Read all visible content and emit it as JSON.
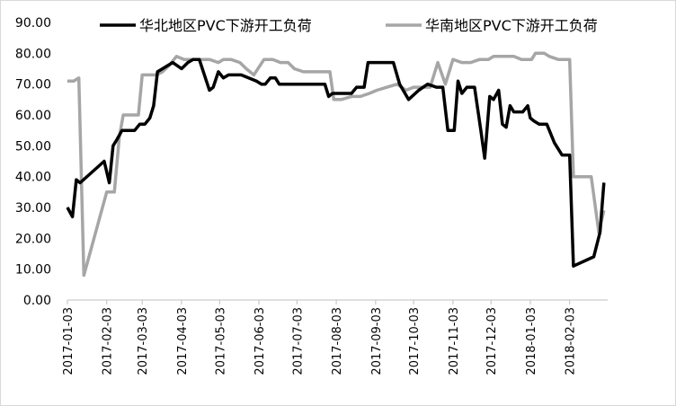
{
  "chart_data": {
    "type": "line",
    "ylim": [
      0,
      90
    ],
    "ytick_labels": [
      "0.00",
      "10.00",
      "20.00",
      "30.00",
      "40.00",
      "50.00",
      "60.00",
      "70.00",
      "80.00",
      "90.00"
    ],
    "ytick_values": [
      0,
      10,
      20,
      30,
      40,
      50,
      60,
      70,
      80,
      90
    ],
    "xtick_labels": [
      "2017-01-03",
      "2017-02-03",
      "2017-03-03",
      "2017-04-03",
      "2017-05-03",
      "2017-06-03",
      "2017-07-03",
      "2017-08-03",
      "2017-09-03",
      "2017-10-03",
      "2017-11-03",
      "2017-12-03",
      "2018-01-03",
      "2018-02-03"
    ],
    "xtick_dates": [
      "2017-01-03",
      "2017-02-03",
      "2017-03-03",
      "2017-04-03",
      "2017-05-03",
      "2017-06-03",
      "2017-07-03",
      "2017-08-03",
      "2017-09-03",
      "2017-10-03",
      "2017-11-03",
      "2017-12-03",
      "2018-01-03",
      "2018-02-03"
    ],
    "x_start": "2017-01-03",
    "x_end": "2018-03-05",
    "legend_position": "top",
    "grid": false,
    "series": [
      {
        "name": "华北地区PVC下游开工负荷",
        "color": "#000000",
        "points": [
          [
            "2017-01-03",
            30
          ],
          [
            "2017-01-07",
            27
          ],
          [
            "2017-01-10",
            39
          ],
          [
            "2017-01-13",
            38
          ],
          [
            "2017-02-01",
            45
          ],
          [
            "2017-02-05",
            38
          ],
          [
            "2017-02-08",
            50
          ],
          [
            "2017-02-11",
            52
          ],
          [
            "2017-02-15",
            55
          ],
          [
            "2017-02-25",
            55
          ],
          [
            "2017-03-01",
            57
          ],
          [
            "2017-03-05",
            57
          ],
          [
            "2017-03-09",
            59
          ],
          [
            "2017-03-12",
            63
          ],
          [
            "2017-03-15",
            74
          ],
          [
            "2017-03-19",
            75
          ],
          [
            "2017-03-27",
            77
          ],
          [
            "2017-04-03",
            75
          ],
          [
            "2017-04-08",
            77
          ],
          [
            "2017-04-12",
            78
          ],
          [
            "2017-04-17",
            78
          ],
          [
            "2017-04-25",
            68
          ],
          [
            "2017-04-28",
            69
          ],
          [
            "2017-05-02",
            74
          ],
          [
            "2017-05-06",
            72
          ],
          [
            "2017-05-10",
            73
          ],
          [
            "2017-05-20",
            73
          ],
          [
            "2017-06-01",
            71
          ],
          [
            "2017-06-05",
            70
          ],
          [
            "2017-06-08",
            70
          ],
          [
            "2017-06-12",
            72
          ],
          [
            "2017-06-16",
            72
          ],
          [
            "2017-06-19",
            70
          ],
          [
            "2017-07-05",
            70
          ],
          [
            "2017-07-15",
            70
          ],
          [
            "2017-07-25",
            70
          ],
          [
            "2017-07-28",
            66
          ],
          [
            "2017-07-31",
            67
          ],
          [
            "2017-08-15",
            67
          ],
          [
            "2017-08-19",
            69
          ],
          [
            "2017-08-25",
            69
          ],
          [
            "2017-08-28",
            77
          ],
          [
            "2017-09-07",
            77
          ],
          [
            "2017-09-17",
            77
          ],
          [
            "2017-09-22",
            70
          ],
          [
            "2017-09-29",
            65
          ],
          [
            "2017-10-07",
            68
          ],
          [
            "2017-10-14",
            70
          ],
          [
            "2017-10-21",
            69
          ],
          [
            "2017-10-26",
            69
          ],
          [
            "2017-10-30",
            55
          ],
          [
            "2017-11-04",
            55
          ],
          [
            "2017-11-07",
            71
          ],
          [
            "2017-11-10",
            67
          ],
          [
            "2017-11-14",
            69
          ],
          [
            "2017-11-20",
            69
          ],
          [
            "2017-11-25",
            55
          ],
          [
            "2017-11-28",
            46
          ],
          [
            "2017-12-02",
            66
          ],
          [
            "2017-12-05",
            65
          ],
          [
            "2017-12-09",
            68
          ],
          [
            "2017-12-12",
            57
          ],
          [
            "2017-12-15",
            56
          ],
          [
            "2017-12-18",
            63
          ],
          [
            "2017-12-21",
            61
          ],
          [
            "2017-12-28",
            61
          ],
          [
            "2018-01-01",
            63
          ],
          [
            "2018-01-03",
            59
          ],
          [
            "2018-01-06",
            58
          ],
          [
            "2018-01-10",
            57
          ],
          [
            "2018-01-16",
            57
          ],
          [
            "2018-01-22",
            51
          ],
          [
            "2018-01-28",
            47
          ],
          [
            "2018-02-03",
            47
          ],
          [
            "2018-02-06",
            11
          ],
          [
            "2018-02-22",
            14
          ],
          [
            "2018-02-27",
            22
          ],
          [
            "2018-03-02",
            38
          ]
        ]
      },
      {
        "name": "华南地区PVC下游开工负荷",
        "color": "#a6a6a6",
        "points": [
          [
            "2017-01-03",
            71
          ],
          [
            "2017-01-08",
            71
          ],
          [
            "2017-01-12",
            72
          ],
          [
            "2017-01-16",
            8
          ],
          [
            "2017-02-03",
            35
          ],
          [
            "2017-02-09",
            35
          ],
          [
            "2017-02-13",
            53
          ],
          [
            "2017-02-16",
            60
          ],
          [
            "2017-02-28",
            60
          ],
          [
            "2017-03-03",
            73
          ],
          [
            "2017-03-14",
            73
          ],
          [
            "2017-03-19",
            74
          ],
          [
            "2017-03-24",
            76
          ],
          [
            "2017-03-30",
            79
          ],
          [
            "2017-04-05",
            78
          ],
          [
            "2017-04-15",
            78
          ],
          [
            "2017-04-25",
            78
          ],
          [
            "2017-05-02",
            77
          ],
          [
            "2017-05-06",
            78
          ],
          [
            "2017-05-12",
            78
          ],
          [
            "2017-05-19",
            77
          ],
          [
            "2017-05-24",
            75
          ],
          [
            "2017-05-30",
            73
          ],
          [
            "2017-06-07",
            78
          ],
          [
            "2017-06-14",
            78
          ],
          [
            "2017-06-20",
            77
          ],
          [
            "2017-06-26",
            77
          ],
          [
            "2017-07-01",
            75
          ],
          [
            "2017-07-08",
            74
          ],
          [
            "2017-07-15",
            74
          ],
          [
            "2017-07-22",
            74
          ],
          [
            "2017-07-29",
            74
          ],
          [
            "2017-08-01",
            65
          ],
          [
            "2017-08-07",
            65
          ],
          [
            "2017-08-15",
            66
          ],
          [
            "2017-08-22",
            66
          ],
          [
            "2017-08-29",
            67
          ],
          [
            "2017-09-04",
            68
          ],
          [
            "2017-09-12",
            69
          ],
          [
            "2017-09-20",
            70
          ],
          [
            "2017-09-27",
            68
          ],
          [
            "2017-10-03",
            69
          ],
          [
            "2017-10-10",
            69
          ],
          [
            "2017-10-16",
            69
          ],
          [
            "2017-10-22",
            77
          ],
          [
            "2017-10-28",
            70
          ],
          [
            "2017-11-03",
            78
          ],
          [
            "2017-11-10",
            77
          ],
          [
            "2017-11-17",
            77
          ],
          [
            "2017-11-24",
            78
          ],
          [
            "2017-12-01",
            78
          ],
          [
            "2017-12-05",
            79
          ],
          [
            "2017-12-12",
            79
          ],
          [
            "2017-12-21",
            79
          ],
          [
            "2017-12-27",
            78
          ],
          [
            "2018-01-04",
            78
          ],
          [
            "2018-01-07",
            80
          ],
          [
            "2018-01-14",
            80
          ],
          [
            "2018-01-18",
            79
          ],
          [
            "2018-01-25",
            78
          ],
          [
            "2018-01-31",
            78
          ],
          [
            "2018-02-03",
            78
          ],
          [
            "2018-02-06",
            40
          ],
          [
            "2018-02-20",
            40
          ],
          [
            "2018-02-26",
            22
          ],
          [
            "2018-03-02",
            29
          ]
        ]
      }
    ]
  }
}
